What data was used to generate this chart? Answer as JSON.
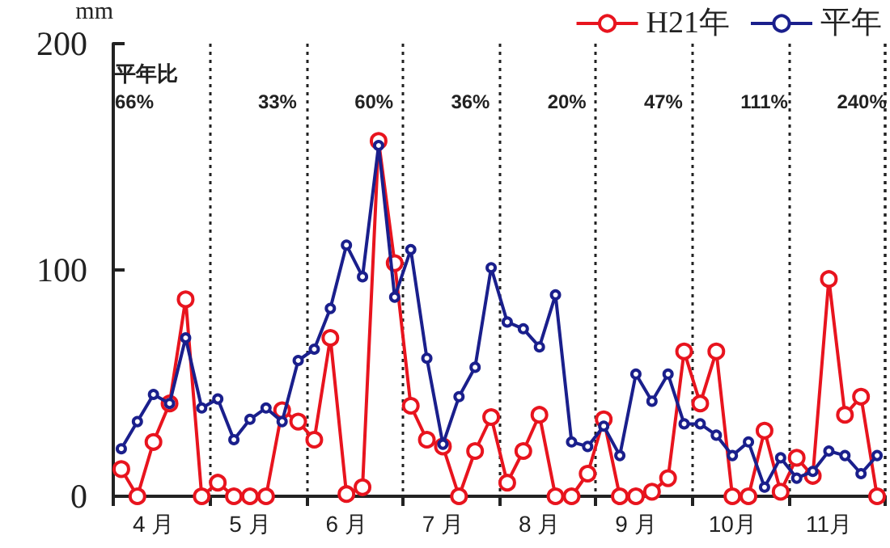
{
  "chart_data": {
    "type": "line",
    "ylabel": "mm",
    "categories": [
      null,
      null,
      "4 月",
      null,
      null,
      null,
      null,
      null,
      "5 月",
      null,
      null,
      null,
      null,
      null,
      "6 月",
      null,
      null,
      null,
      null,
      null,
      "7 月",
      null,
      null,
      null,
      null,
      null,
      "8 月",
      null,
      null,
      null,
      null,
      null,
      "9 月",
      null,
      null,
      null,
      null,
      null,
      "10月",
      null,
      null,
      null,
      null,
      null,
      "11月",
      null,
      null,
      null
    ],
    "series": [
      {
        "name": "H21年",
        "color": "#e8141e",
        "marker": "circle",
        "values": [
          12,
          0,
          24,
          41,
          87,
          0,
          6,
          0,
          0,
          0,
          38,
          33,
          25,
          70,
          1,
          4,
          157,
          103,
          40,
          25,
          22,
          0,
          20,
          35,
          6,
          20,
          36,
          0,
          0,
          10,
          34,
          0,
          0,
          2,
          8,
          64,
          41,
          64,
          0,
          0,
          29,
          2,
          17,
          9,
          96,
          36,
          44,
          0
        ]
      },
      {
        "name": "平年",
        "color": "#1a1f8c",
        "marker": "circle",
        "values": [
          21,
          33,
          45,
          41,
          70,
          39,
          43,
          25,
          34,
          39,
          33,
          60,
          65,
          83,
          111,
          97,
          155,
          88,
          109,
          61,
          23,
          44,
          57,
          101,
          77,
          74,
          66,
          89,
          24,
          22,
          31,
          18,
          54,
          42,
          54,
          32,
          32,
          27,
          18,
          24,
          4,
          17,
          8,
          11,
          20,
          18,
          10,
          18
        ]
      }
    ],
    "ylim": [
      0,
      200
    ],
    "yticks": [
      0,
      100,
      200
    ],
    "grid": "x",
    "legend": "top right",
    "annotations": [
      "平年比",
      "66%",
      "33%",
      "60%",
      "36%",
      "20%",
      "47%",
      "111%",
      "240%"
    ]
  }
}
